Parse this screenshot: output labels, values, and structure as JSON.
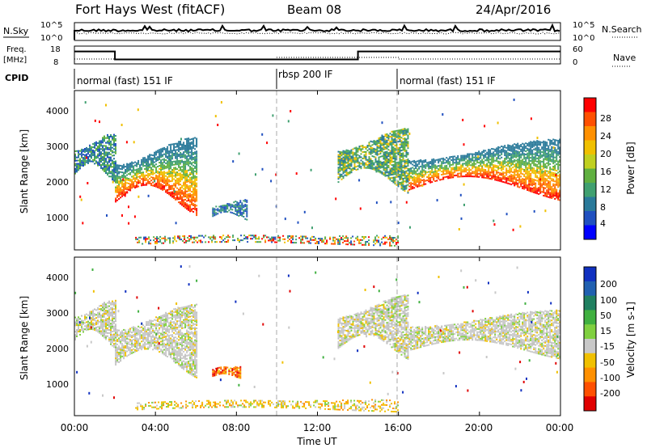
{
  "header": {
    "radar": "Fort Hays West (fitACF)",
    "beam": "Beam 08",
    "date": "24/Apr/2016"
  },
  "nsky_panel": {
    "left_label": "N.Sky",
    "left_ticks": [
      "10^5",
      "10^0"
    ],
    "right_label": "N.Search",
    "right_ticks": [
      "10^5",
      "10^0"
    ]
  },
  "freq_panel": {
    "left_label_1": "Freq.",
    "left_label_2": "[MHz]",
    "left_ticks": [
      "18",
      "8"
    ],
    "right_label": "Nave",
    "right_ticks": [
      "60",
      "0"
    ]
  },
  "cpid": {
    "label": "CPID",
    "segments": [
      {
        "name": "normal (fast) 151 IF",
        "start_h": 0,
        "end_h": 10
      },
      {
        "name": "rbsp 200 IF",
        "start_h": 10,
        "end_h": 16
      },
      {
        "name": "normal (fast) 151 IF",
        "start_h": 16,
        "end_h": 24
      }
    ]
  },
  "time_axis": {
    "label": "Time UT",
    "ticks": [
      "00:00",
      "04:00",
      "08:00",
      "12:00",
      "16:00",
      "20:00",
      "00:00"
    ]
  },
  "power_panel": {
    "ylabel": "Slant Range [km]",
    "yticks": [
      "4000",
      "3000",
      "2000",
      "1000"
    ],
    "colorbar_label": "Power [dB]",
    "colorbar_ticks": [
      "28",
      "24",
      "20",
      "16",
      "12",
      "8",
      "4"
    ],
    "colors": {
      "high": "#ff0000",
      "mid_high": "#ff8800",
      "mid": "#f0d000",
      "mid_low": "#40a040",
      "low": "#2060a0",
      "lowest": "#0000ff"
    }
  },
  "velocity_panel": {
    "ylabel": "Slant Range [km]",
    "yticks": [
      "4000",
      "3000",
      "2000",
      "1000"
    ],
    "colorbar_label": "Velocity [m s-1]",
    "colorbar_ticks": [
      "200",
      "100",
      "50",
      "15",
      "-15",
      "-50",
      "-100",
      "-200"
    ],
    "colors": {
      "ground": "#c8c8c8",
      "pos_high": "#1030c0",
      "neg_high": "#e00000",
      "neg_mid": "#ff8800",
      "neg_low": "#f0c000",
      "pos_low": "#40c040"
    }
  },
  "chart_data": [
    {
      "type": "line",
      "title": "Fort Hays West (fitACF)",
      "xlabel": "Time UT",
      "xlim": [
        0,
        24
      ],
      "series": [
        {
          "name": "Freq.",
          "x": [
            0,
            2,
            2,
            14,
            14,
            24
          ],
          "values": [
            15,
            15,
            10.5,
            10.5,
            15,
            15
          ]
        }
      ]
    },
    {
      "type": "heatmap",
      "title": "",
      "xlabel": "Time UT",
      "ylabel": "Slant Range [km]",
      "xlim": [
        0,
        24
      ],
      "ylim": [
        0,
        4500
      ],
      "colorbar": "Power [dB]",
      "colorbar_range": [
        0,
        30
      ],
      "regions": [
        {
          "t_start": 0,
          "t_end": 2,
          "r_low": 2000,
          "r_high": 3200,
          "level": "green-blue"
        },
        {
          "t_start": 2,
          "t_end": 6,
          "r_low": 1100,
          "r_high": 3000,
          "level": "red-yellow"
        },
        {
          "t_start": 6.8,
          "t_end": 8.5,
          "r_low": 900,
          "r_high": 1400,
          "level": "blue"
        },
        {
          "t_start": 13,
          "t_end": 16.5,
          "r_low": 1700,
          "r_high": 3300,
          "level": "green"
        },
        {
          "t_start": 16.5,
          "t_end": 24,
          "r_low": 1500,
          "r_high": 3000,
          "level": "red-yellow"
        },
        {
          "t_start": 3,
          "t_end": 16,
          "r_low": 150,
          "r_high": 400,
          "level": "mixed"
        }
      ]
    },
    {
      "type": "heatmap",
      "title": "",
      "xlabel": "Time UT",
      "ylabel": "Slant Range [km]",
      "xlim": [
        0,
        24
      ],
      "ylim": [
        0,
        4500
      ],
      "colorbar": "Velocity [m s-1]",
      "colorbar_range": [
        -250,
        250
      ],
      "regions": [
        {
          "t_start": 0,
          "t_end": 2,
          "r_low": 2000,
          "r_high": 3200,
          "level": "ground"
        },
        {
          "t_start": 2,
          "t_end": 6,
          "r_low": 1200,
          "r_high": 3000,
          "level": "ground"
        },
        {
          "t_start": 6.8,
          "t_end": 8.2,
          "r_low": 1100,
          "r_high": 1400,
          "level": "negative"
        },
        {
          "t_start": 13,
          "t_end": 16.5,
          "r_low": 1700,
          "r_high": 3300,
          "level": "ground"
        },
        {
          "t_start": 16.5,
          "t_end": 24,
          "r_low": 1700,
          "r_high": 2900,
          "level": "ground"
        },
        {
          "t_start": 3,
          "t_end": 16,
          "r_low": 150,
          "r_high": 450,
          "level": "negative-low"
        }
      ]
    }
  ]
}
